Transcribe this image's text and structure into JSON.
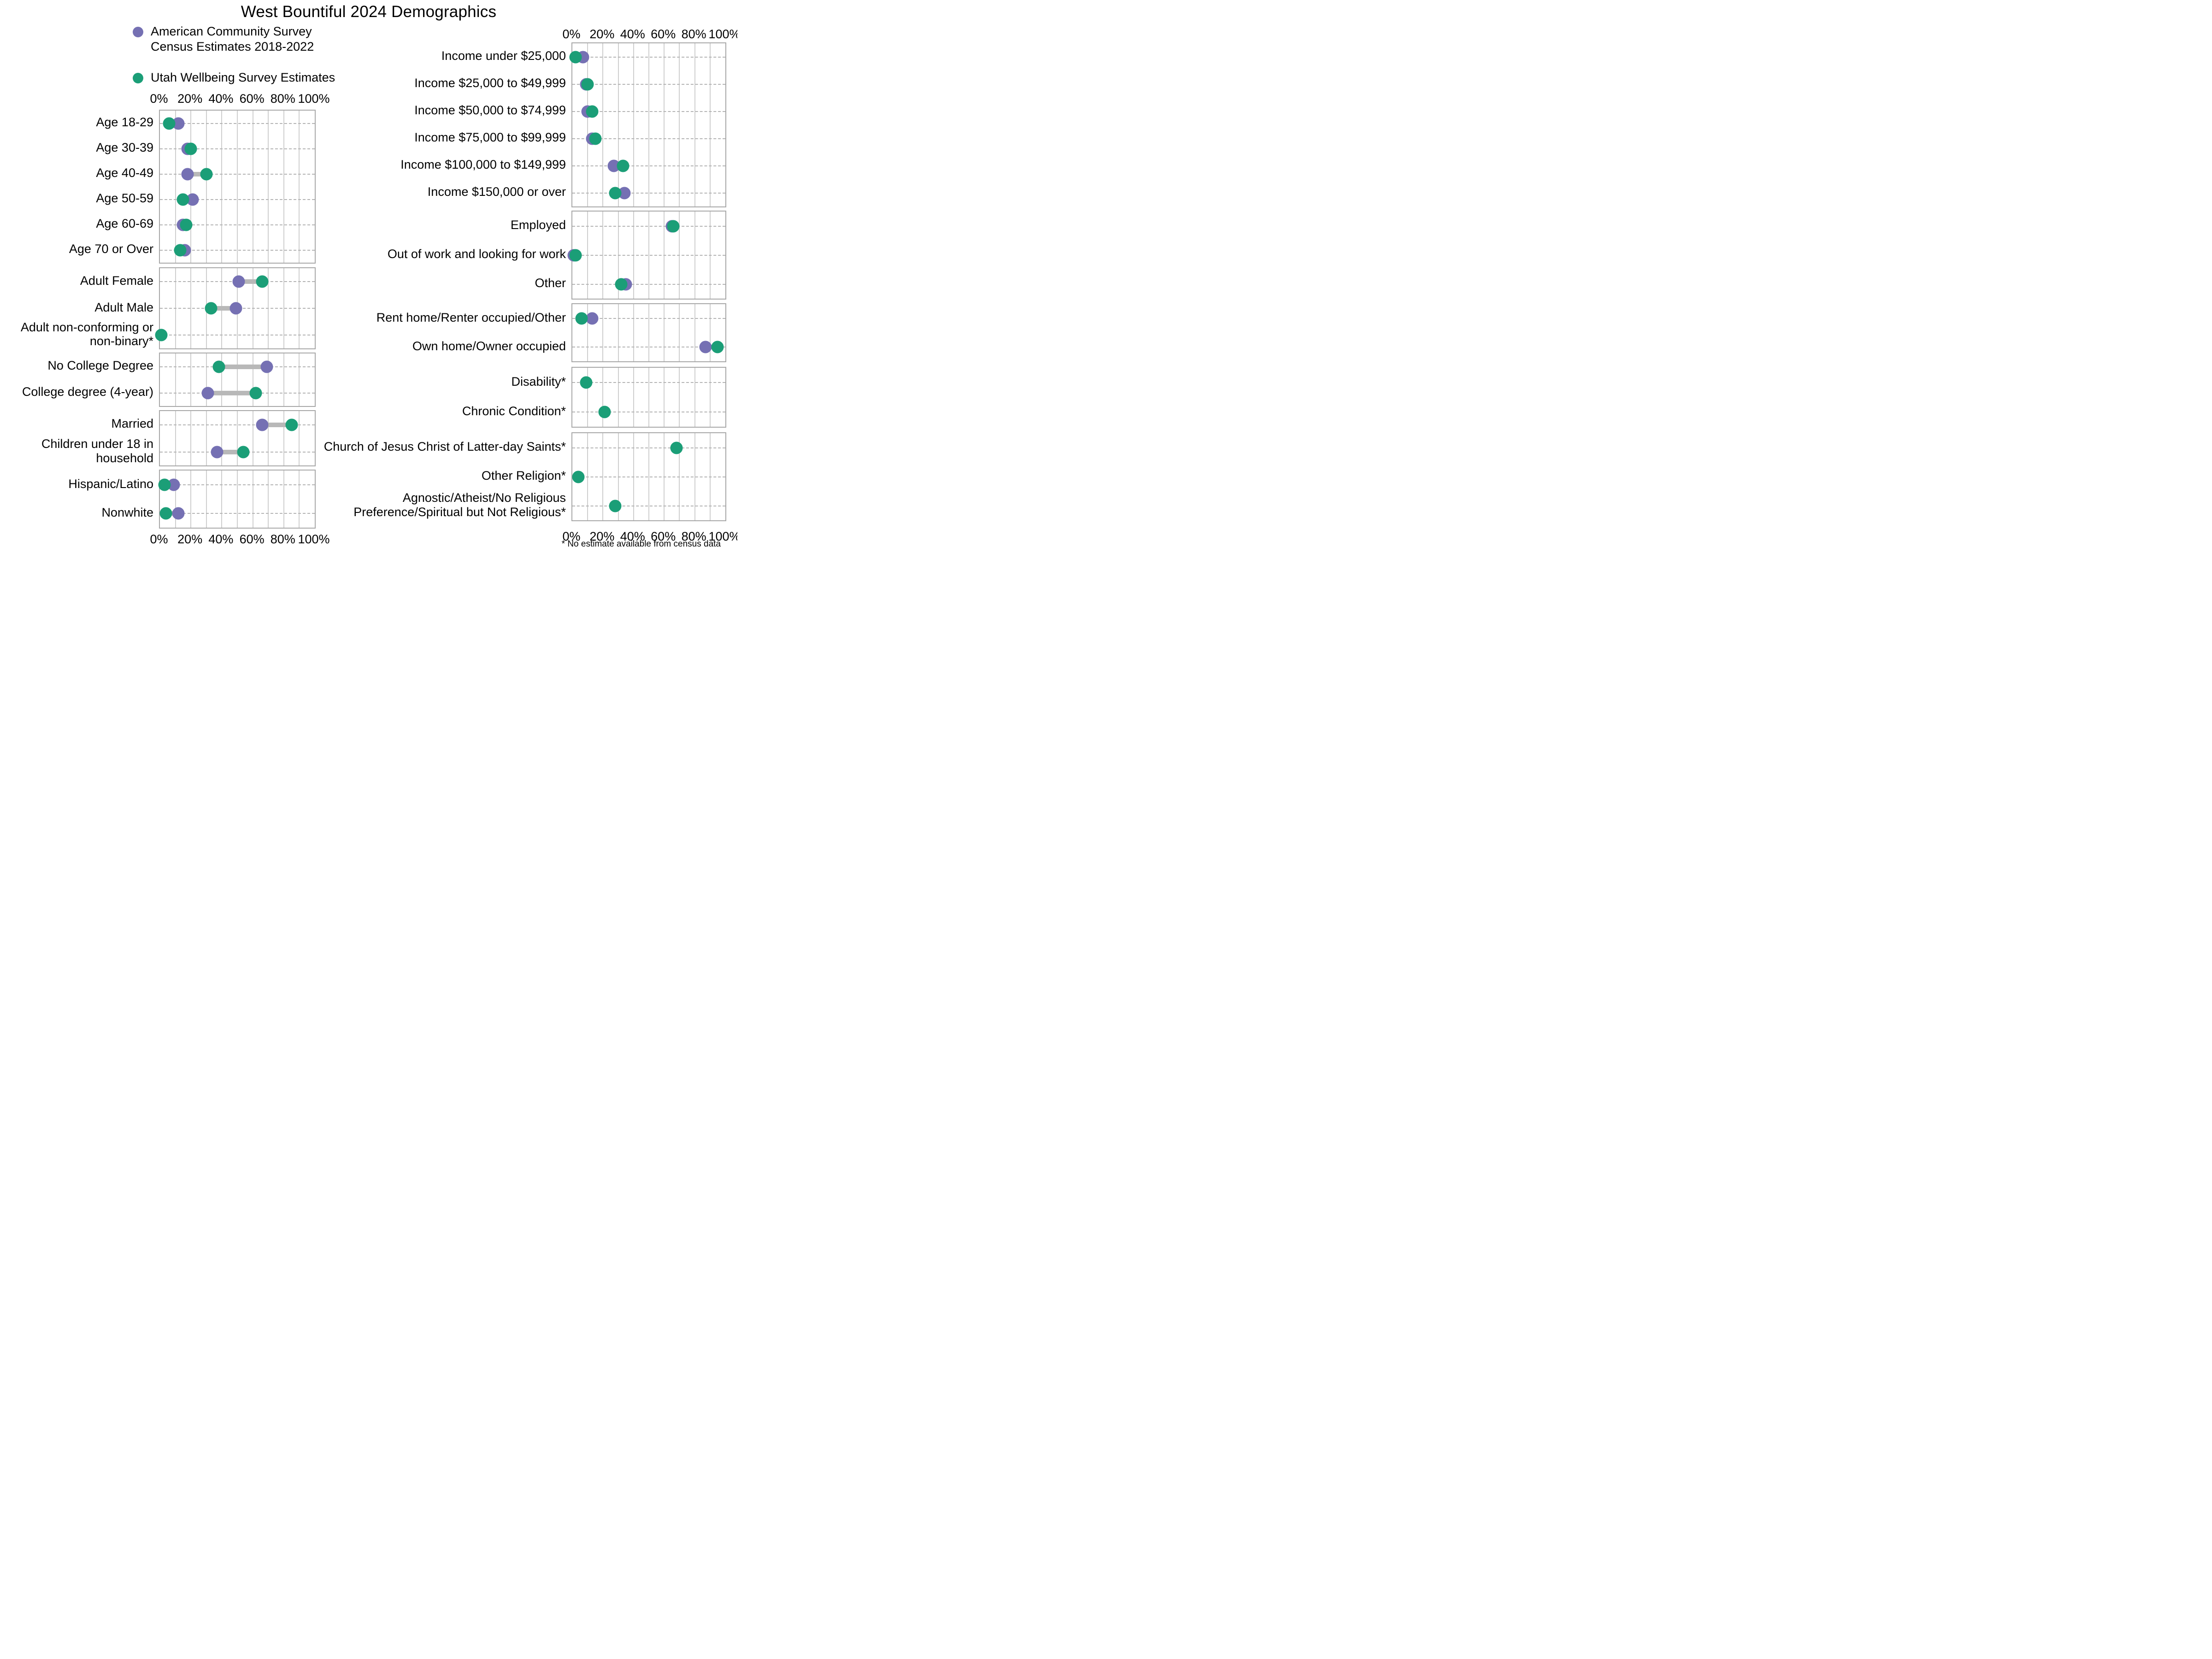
{
  "title": "West Bountiful 2024 Demographics",
  "legend": {
    "items": [
      {
        "series": "acs",
        "label": "American Community Survey\nCensus Estimates 2018-2022"
      },
      {
        "series": "uws",
        "label": "Utah Wellbeing Survey Estimates"
      }
    ]
  },
  "footnote": "* No estimate available from census data",
  "chart_data": {
    "type": "scatter",
    "subtype": "dumbbell-dot-plot",
    "unit": "percent",
    "x_axis": {
      "range": [
        0,
        100
      ],
      "major_ticks": [
        0,
        20,
        40,
        60,
        80,
        100
      ],
      "tick_labels": [
        "0%",
        "20%",
        "40%",
        "60%",
        "80%",
        "100%"
      ],
      "minor_grid_step": 10,
      "grid": true
    },
    "legend_position": "top-left",
    "series": [
      {
        "id": "acs",
        "name": "American Community Survey Census Estimates 2018-2022",
        "color": "#7570B3"
      },
      {
        "id": "uws",
        "name": "Utah Wellbeing Survey Estimates",
        "color": "#1B9E77"
      }
    ],
    "columns": [
      {
        "side": "left",
        "panels": [
          {
            "group": "age",
            "rows": [
              {
                "label": "Age 18-29",
                "acs": 12,
                "uws": 6
              },
              {
                "label": "Age 30-39",
                "acs": 18,
                "uws": 20
              },
              {
                "label": "Age 40-49",
                "acs": 18,
                "uws": 30
              },
              {
                "label": "Age 50-59",
                "acs": 21,
                "uws": 15
              },
              {
                "label": "Age 60-69",
                "acs": 15,
                "uws": 17
              },
              {
                "label": "Age 70 or Over",
                "acs": 16,
                "uws": 13
              }
            ]
          },
          {
            "group": "gender",
            "rows": [
              {
                "label": "Adult Female",
                "acs": 51,
                "uws": 66
              },
              {
                "label": "Adult Male",
                "acs": 49,
                "uws": 33
              },
              {
                "label": "Adult non-conforming or non-binary*",
                "acs": null,
                "uws": 1
              }
            ]
          },
          {
            "group": "education",
            "rows": [
              {
                "label": "No College Degree",
                "acs": 69,
                "uws": 38
              },
              {
                "label": "College degree (4-year)",
                "acs": 31,
                "uws": 62
              }
            ]
          },
          {
            "group": "family",
            "rows": [
              {
                "label": "Married",
                "acs": 66,
                "uws": 85
              },
              {
                "label": "Children under 18 in household",
                "acs": 37,
                "uws": 54
              }
            ]
          },
          {
            "group": "race-ethnicity",
            "rows": [
              {
                "label": "Hispanic/Latino",
                "acs": 9,
                "uws": 3
              },
              {
                "label": "Nonwhite",
                "acs": 12,
                "uws": 4
              }
            ]
          }
        ]
      },
      {
        "side": "right",
        "panels": [
          {
            "group": "income",
            "rows": [
              {
                "label": "Income under $25,000",
                "acs": 7,
                "uws": 2
              },
              {
                "label": "Income $25,000 to $49,999",
                "acs": 9,
                "uws": 10
              },
              {
                "label": "Income $50,000 to $74,999",
                "acs": 10,
                "uws": 13
              },
              {
                "label": "Income $75,000 to $99,999",
                "acs": 13,
                "uws": 15
              },
              {
                "label": "Income $100,000 to $149,999",
                "acs": 27,
                "uws": 33
              },
              {
                "label": "Income $150,000 or over",
                "acs": 34,
                "uws": 28
              }
            ]
          },
          {
            "group": "employment",
            "rows": [
              {
                "label": "Employed",
                "acs": 65,
                "uws": 66
              },
              {
                "label": "Out of work and looking for work",
                "acs": 1,
                "uws": 2
              },
              {
                "label": "Other",
                "acs": 35,
                "uws": 32
              }
            ]
          },
          {
            "group": "housing",
            "rows": [
              {
                "label": "Rent home/Renter occupied/Other",
                "acs": 13,
                "uws": 6
              },
              {
                "label": "Own home/Owner occupied",
                "acs": 87,
                "uws": 95
              }
            ]
          },
          {
            "group": "health",
            "rows": [
              {
                "label": "Disability*",
                "acs": null,
                "uws": 9
              },
              {
                "label": "Chronic Condition*",
                "acs": null,
                "uws": 21
              }
            ]
          },
          {
            "group": "religion",
            "rows": [
              {
                "label": "Church of Jesus Christ of Latter-day Saints*",
                "acs": null,
                "uws": 68
              },
              {
                "label": "Other Religion*",
                "acs": null,
                "uws": 4
              },
              {
                "label": "Agnostic/Atheist/No Religious Preference/Spiritual but Not Religious*",
                "acs": null,
                "uws": 28
              }
            ]
          }
        ]
      }
    ]
  }
}
